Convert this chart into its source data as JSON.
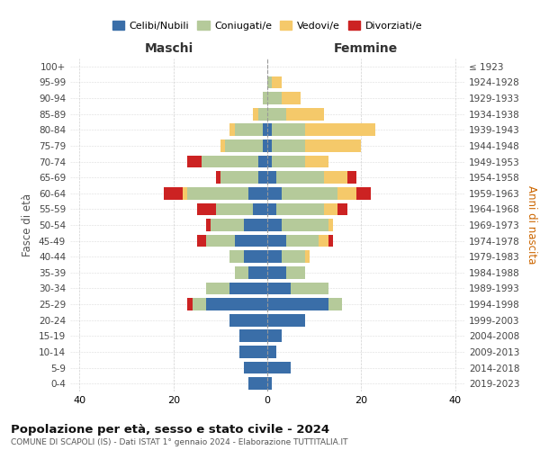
{
  "age_groups": [
    "0-4",
    "5-9",
    "10-14",
    "15-19",
    "20-24",
    "25-29",
    "30-34",
    "35-39",
    "40-44",
    "45-49",
    "50-54",
    "55-59",
    "60-64",
    "65-69",
    "70-74",
    "75-79",
    "80-84",
    "85-89",
    "90-94",
    "95-99",
    "100+"
  ],
  "birth_years": [
    "2019-2023",
    "2014-2018",
    "2009-2013",
    "2004-2008",
    "1999-2003",
    "1994-1998",
    "1989-1993",
    "1984-1988",
    "1979-1983",
    "1974-1978",
    "1969-1973",
    "1964-1968",
    "1959-1963",
    "1954-1958",
    "1949-1953",
    "1944-1948",
    "1939-1943",
    "1934-1938",
    "1929-1933",
    "1924-1928",
    "≤ 1923"
  ],
  "colors": {
    "celibi": "#3a6ea8",
    "coniugati": "#b5ca9a",
    "vedovi": "#f5c96a",
    "divorziati": "#cc2222"
  },
  "maschi": {
    "celibi": [
      4,
      5,
      6,
      6,
      8,
      13,
      8,
      4,
      5,
      7,
      5,
      3,
      4,
      2,
      2,
      1,
      1,
      0,
      0,
      0,
      0
    ],
    "coniugati": [
      0,
      0,
      0,
      0,
      0,
      3,
      5,
      3,
      3,
      6,
      7,
      8,
      13,
      8,
      12,
      8,
      6,
      2,
      1,
      0,
      0
    ],
    "vedovi": [
      0,
      0,
      0,
      0,
      0,
      0,
      0,
      0,
      0,
      0,
      0,
      0,
      1,
      0,
      0,
      1,
      1,
      1,
      0,
      0,
      0
    ],
    "divorziati": [
      0,
      0,
      0,
      0,
      0,
      1,
      0,
      0,
      0,
      2,
      1,
      4,
      4,
      1,
      3,
      0,
      0,
      0,
      0,
      0,
      0
    ]
  },
  "femmine": {
    "celibi": [
      1,
      5,
      2,
      3,
      8,
      13,
      5,
      4,
      3,
      4,
      3,
      2,
      3,
      2,
      1,
      1,
      1,
      0,
      0,
      0,
      0
    ],
    "coniugati": [
      0,
      0,
      0,
      0,
      0,
      3,
      8,
      4,
      5,
      7,
      10,
      10,
      12,
      10,
      7,
      7,
      7,
      4,
      3,
      1,
      0
    ],
    "vedovi": [
      0,
      0,
      0,
      0,
      0,
      0,
      0,
      0,
      1,
      2,
      1,
      3,
      4,
      5,
      5,
      12,
      15,
      8,
      4,
      2,
      0
    ],
    "divorziati": [
      0,
      0,
      0,
      0,
      0,
      0,
      0,
      0,
      0,
      1,
      0,
      2,
      3,
      2,
      0,
      0,
      0,
      0,
      0,
      0,
      0
    ]
  },
  "title": "Popolazione per età, sesso e stato civile - 2024",
  "subtitle": "COMUNE DI SCAPOLI (IS) - Dati ISTAT 1° gennaio 2024 - Elaborazione TUTTITALIA.IT",
  "xlabel_maschi": "Maschi",
  "xlabel_femmine": "Femmine",
  "ylabel_left": "Fasce di età",
  "ylabel_right": "Anni di nascita",
  "xlim": 42,
  "xticks": [
    -40,
    -20,
    0,
    20,
    40
  ],
  "legend_labels": [
    "Celibi/Nubili",
    "Coniugati/e",
    "Vedovi/e",
    "Divorziati/e"
  ],
  "background_color": "#ffffff",
  "grid_color": "#cccccc"
}
